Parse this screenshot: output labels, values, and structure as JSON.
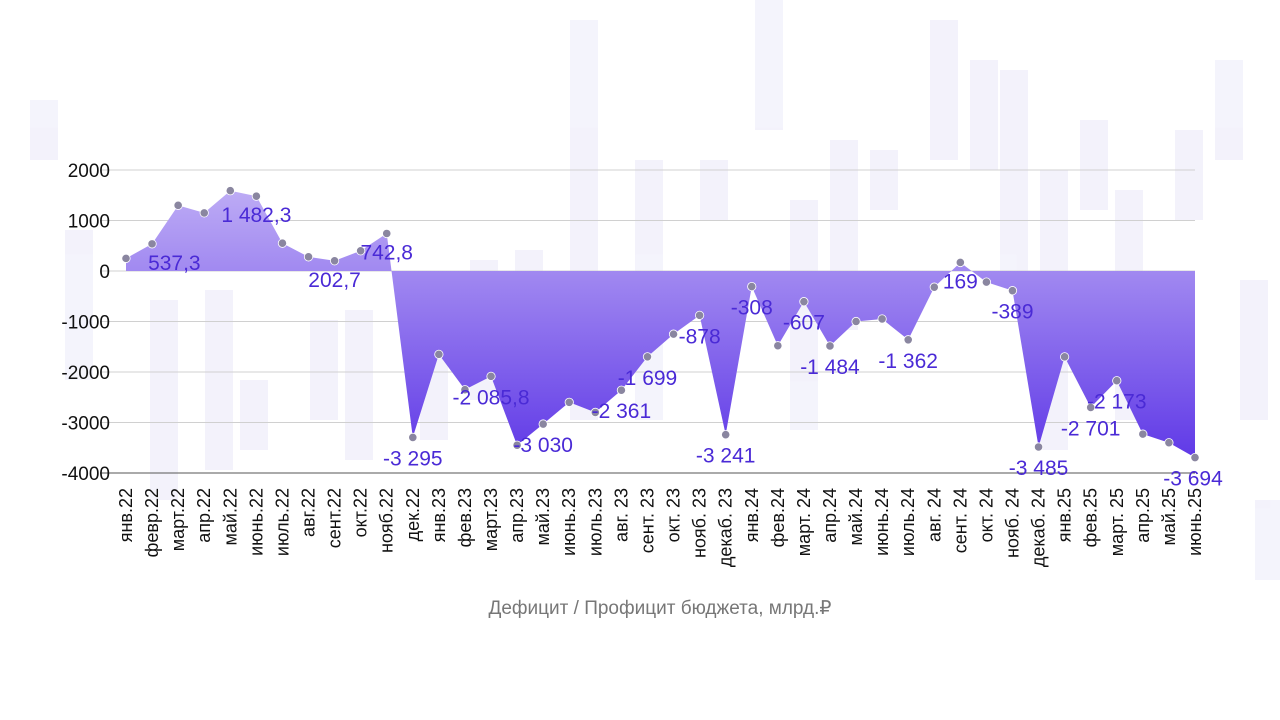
{
  "colors": {
    "area_top": "#c4b4f6",
    "area_bottom": "#5a32e6",
    "marker": "#8a86a0",
    "label": "#4a2ad6",
    "grid": "#d0d0d0",
    "axis_text": "#111111",
    "xlabel_text": "#777777"
  },
  "chart_data": {
    "type": "area",
    "xlabel": "Дефицит / Профицит бюджета, млрд.₽",
    "ylabel": "",
    "ylim": [
      -4000,
      2000
    ],
    "yticks": [
      2000,
      1000,
      0,
      -1000,
      -2000,
      -3000,
      -4000
    ],
    "ytick_labels": [
      "2000",
      "1000",
      "0",
      "-1000",
      "-2000",
      "-3000",
      "-4000"
    ],
    "grid": true,
    "categories": [
      "янв.22",
      "февр.22",
      "март.22",
      "апр.22",
      "май.22",
      "июнь.22",
      "июль.22",
      "авг.22",
      "сент.22",
      "окт.22",
      "нояб.22",
      "дек.22",
      "янв.23",
      "фев.23",
      "март.23",
      "апр.23",
      "май.23",
      "июнь.23",
      "июль.23",
      "авг. 23",
      "сент. 23",
      "окт. 23",
      "нояб. 23",
      "декаб. 23",
      "янв.24",
      "фев.24",
      "март. 24",
      "апр.24",
      "май.24",
      "июнь.24",
      "июль.24",
      "авг. 24",
      "сент. 24",
      "окт. 24",
      "нояб. 24",
      "декаб. 24",
      "янв.25",
      "фев.25",
      "март. 25",
      "апр.25",
      "май.25",
      "июнь.25"
    ],
    "values": [
      250,
      537.3,
      1300,
      1150,
      1590,
      1482.3,
      550,
      280,
      202.7,
      400,
      742.8,
      -3295,
      -1650,
      -2350,
      -2085.8,
      -3450,
      -3030,
      -2600,
      -2800,
      -2361,
      -1699,
      -1250,
      -878,
      -3241,
      -308,
      -1480,
      -607,
      -1484,
      -1000,
      -950,
      -1362,
      -320,
      169,
      -220,
      -389,
      -3485,
      -1700,
      -2701,
      -2173,
      -3230,
      -3400,
      -3694
    ],
    "annotations": [
      {
        "index": 1,
        "text": "537,3"
      },
      {
        "index": 5,
        "text": "1 482,3"
      },
      {
        "index": 8,
        "text": "202,7"
      },
      {
        "index": 10,
        "text": "742,8"
      },
      {
        "index": 11,
        "text": "-3 295"
      },
      {
        "index": 14,
        "text": "-2 085,8"
      },
      {
        "index": 16,
        "text": "-3 030"
      },
      {
        "index": 19,
        "text": "-2 361"
      },
      {
        "index": 20,
        "text": "-1 699"
      },
      {
        "index": 22,
        "text": "-878"
      },
      {
        "index": 23,
        "text": "-3 241"
      },
      {
        "index": 24,
        "text": "-308"
      },
      {
        "index": 26,
        "text": "-607"
      },
      {
        "index": 27,
        "text": "-1 484"
      },
      {
        "index": 30,
        "text": "-1 362"
      },
      {
        "index": 32,
        "text": "169"
      },
      {
        "index": 34,
        "text": "-389"
      },
      {
        "index": 35,
        "text": "-3 485"
      },
      {
        "index": 37,
        "text": "-2 701"
      },
      {
        "index": 38,
        "text": "-2 173"
      },
      {
        "index": 41,
        "text": "-3 694"
      }
    ]
  }
}
